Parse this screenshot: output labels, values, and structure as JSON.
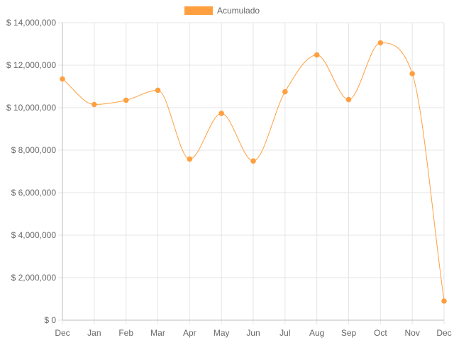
{
  "chart_data": {
    "type": "line",
    "title": "",
    "xlabel": "",
    "ylabel": "",
    "categories": [
      "Dec",
      "Jan",
      "Feb",
      "Mar",
      "Apr",
      "May",
      "Jun",
      "Jul",
      "Aug",
      "Sep",
      "Oct",
      "Nov",
      "Dec"
    ],
    "series": [
      {
        "name": "Acumulado",
        "color": "#ff9f40",
        "values": [
          11350000,
          10150000,
          10350000,
          10820000,
          7580000,
          9730000,
          7490000,
          10750000,
          12480000,
          10380000,
          13050000,
          11600000,
          900000
        ]
      }
    ],
    "ylim": [
      0,
      14000000
    ],
    "y_ticks": [
      0,
      2000000,
      4000000,
      6000000,
      8000000,
      10000000,
      12000000,
      14000000
    ],
    "y_tick_labels": [
      "$ 0",
      "$ 2,000,000",
      "$ 4,000,000",
      "$ 6,000,000",
      "$ 8,000,000",
      "$ 10,000,000",
      "$ 12,000,000",
      "$ 14,000,000"
    ],
    "grid": true,
    "legend_position": "top-center",
    "curve": "smooth"
  },
  "colors": {
    "line": "#ff9f40",
    "legend_swatch": "#ff9f40",
    "grid": "#e5e5e5",
    "axis": "#bbbbbb",
    "text": "#666666"
  }
}
